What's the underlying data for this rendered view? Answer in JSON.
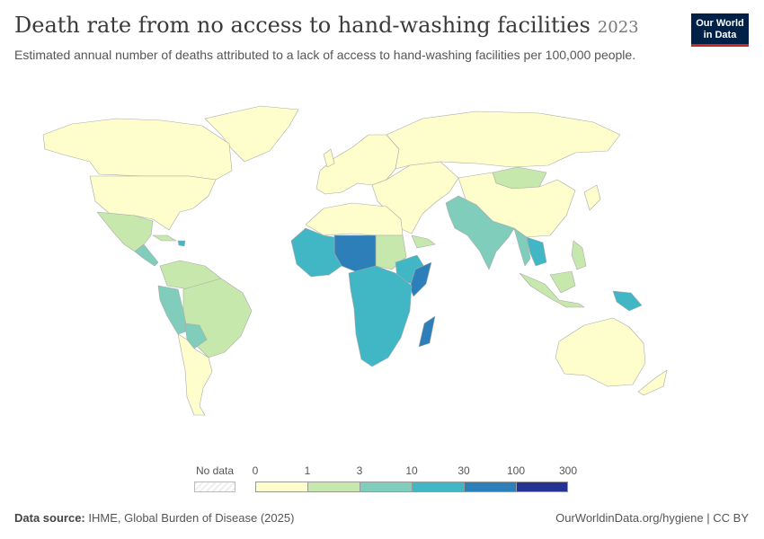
{
  "header": {
    "title": "Death rate from no access to hand-washing facilities",
    "year": "2023",
    "subtitle": "Estimated annual number of deaths attributed to a lack of access to hand-washing facilities per 100,000 people."
  },
  "logo": {
    "line1": "Our World",
    "line2": "in Data"
  },
  "legend": {
    "no_data_label": "No data",
    "ticks": [
      "0",
      "1",
      "3",
      "10",
      "30",
      "100",
      "300"
    ],
    "bins": [
      {
        "from": "0",
        "to": "1",
        "color": "#fefecc"
      },
      {
        "from": "1",
        "to": "3",
        "color": "#c7e8ad"
      },
      {
        "from": "3",
        "to": "10",
        "color": "#80cdbb"
      },
      {
        "from": "10",
        "to": "30",
        "color": "#41b6c4"
      },
      {
        "from": "30",
        "to": "100",
        "color": "#2c7fb8"
      },
      {
        "from": "100",
        "to": "300",
        "color": "#253494"
      }
    ]
  },
  "footer": {
    "source_label": "Data source:",
    "source_text": "IHME, Global Burden of Disease (2025)",
    "url": "OurWorldinData.org/hygiene",
    "license": "CC BY"
  },
  "chart_data": {
    "type": "choropleth",
    "metric": "Death rate from no access to hand-washing facilities per 100,000 people",
    "year": "2023",
    "bins": [
      "0-1",
      "1-3",
      "3-10",
      "10-30",
      "30-100",
      "100-300"
    ],
    "regions": [
      {
        "region": "North America",
        "bin": "0-1"
      },
      {
        "region": "Greenland",
        "bin": "0-1"
      },
      {
        "region": "Mexico",
        "bin": "1-3"
      },
      {
        "region": "Central America",
        "bin": "3-10"
      },
      {
        "region": "Haiti",
        "bin": "10-30"
      },
      {
        "region": "Cuba / Caribbean",
        "bin": "1-3"
      },
      {
        "region": "Brazil",
        "bin": "1-3"
      },
      {
        "region": "Peru",
        "bin": "3-10"
      },
      {
        "region": "Bolivia",
        "bin": "3-10"
      },
      {
        "region": "Chile / Argentina",
        "bin": "0-1"
      },
      {
        "region": "Europe",
        "bin": "0-1"
      },
      {
        "region": "Russia",
        "bin": "0-1"
      },
      {
        "region": "North Africa",
        "bin": "0-1"
      },
      {
        "region": "Sudan",
        "bin": "1-3"
      },
      {
        "region": "Sahel (Niger, Chad, Mali)",
        "bin": "30-100"
      },
      {
        "region": "West Africa",
        "bin": "10-30"
      },
      {
        "region": "Somalia",
        "bin": "30-100"
      },
      {
        "region": "Central Africa",
        "bin": "10-30"
      },
      {
        "region": "Southern Africa",
        "bin": "10-30"
      },
      {
        "region": "Madagascar",
        "bin": "30-100"
      },
      {
        "region": "Middle East",
        "bin": "0-1"
      },
      {
        "region": "Yemen",
        "bin": "1-3"
      },
      {
        "region": "Pakistan / India",
        "bin": "3-10"
      },
      {
        "region": "Myanmar",
        "bin": "3-10"
      },
      {
        "region": "Laos / Cambodia",
        "bin": "10-30"
      },
      {
        "region": "China",
        "bin": "0-1"
      },
      {
        "region": "Mongolia",
        "bin": "1-3"
      },
      {
        "region": "Indonesia / Philippines",
        "bin": "1-3"
      },
      {
        "region": "Papua New Guinea",
        "bin": "10-30"
      },
      {
        "region": "Australia / New Zealand",
        "bin": "0-1"
      }
    ]
  }
}
